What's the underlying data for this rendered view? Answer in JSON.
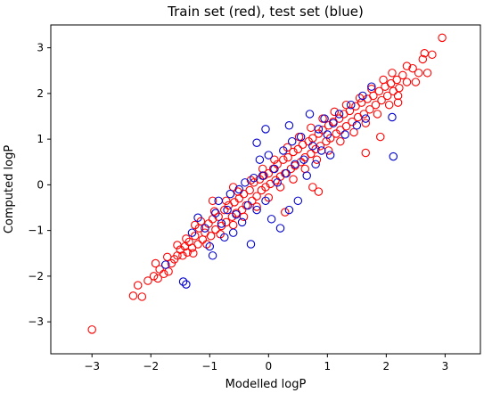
{
  "chart_data": {
    "type": "scatter",
    "title": "Train set (red), test set (blue)",
    "xlabel": "Modelled logP",
    "ylabel": "Computed logP",
    "xlim": [
      -3.7,
      3.6
    ],
    "ylim": [
      -3.7,
      3.5
    ],
    "xticks": [
      -3,
      -2,
      -1,
      0,
      1,
      2,
      3
    ],
    "yticks": [
      -3,
      -2,
      -1,
      0,
      1,
      2,
      3
    ],
    "grid": false,
    "legend": "none",
    "colors": {
      "train": "#ff0000",
      "test": "#0000cc"
    },
    "series": [
      {
        "color": "#ff0000",
        "points": [
          [
            -3.0,
            -3.17
          ],
          [
            -2.3,
            -2.43
          ],
          [
            -2.15,
            -2.45
          ],
          [
            -2.05,
            -2.1
          ],
          [
            -1.95,
            -2.0
          ],
          [
            -1.92,
            -1.72
          ],
          [
            -1.85,
            -1.85
          ],
          [
            -1.78,
            -1.95
          ],
          [
            -1.72,
            -1.58
          ],
          [
            -1.65,
            -1.72
          ],
          [
            -1.6,
            -1.63
          ],
          [
            -1.55,
            -1.55
          ],
          [
            -1.5,
            -1.42
          ],
          [
            -1.46,
            -1.55
          ],
          [
            -1.42,
            -1.35
          ],
          [
            -1.38,
            -1.48
          ],
          [
            -1.35,
            -1.25
          ],
          [
            -1.3,
            -1.38
          ],
          [
            -1.25,
            -1.12
          ],
          [
            -1.2,
            -1.3
          ],
          [
            -1.18,
            -0.95
          ],
          [
            -1.12,
            -1.2
          ],
          [
            -1.08,
            -1.05
          ],
          [
            -1.02,
            -0.85
          ],
          [
            -0.98,
            -1.12
          ],
          [
            -0.95,
            -0.75
          ],
          [
            -0.9,
            -0.98
          ],
          [
            -0.85,
            -0.7
          ],
          [
            -0.8,
            -0.9
          ],
          [
            -0.75,
            -0.55
          ],
          [
            -0.72,
            -0.82
          ],
          [
            -0.68,
            -0.45
          ],
          [
            -0.62,
            -0.7
          ],
          [
            -0.58,
            -0.38
          ],
          [
            -0.55,
            -0.62
          ],
          [
            -0.5,
            -0.3
          ],
          [
            -0.45,
            -0.55
          ],
          [
            -0.42,
            -0.2
          ],
          [
            -0.38,
            -0.45
          ],
          [
            -0.32,
            -0.12
          ],
          [
            -0.28,
            -0.35
          ],
          [
            -0.25,
            0.05
          ],
          [
            -0.2,
            -0.25
          ],
          [
            -0.15,
            0.12
          ],
          [
            -0.12,
            -0.12
          ],
          [
            -0.08,
            0.2
          ],
          [
            -0.05,
            -0.05
          ],
          [
            0.0,
            0.25
          ],
          [
            0.03,
            0.02
          ],
          [
            0.08,
            0.35
          ],
          [
            0.12,
            0.1
          ],
          [
            0.15,
            0.45
          ],
          [
            0.2,
            0.18
          ],
          [
            0.25,
            0.55
          ],
          [
            0.28,
            0.25
          ],
          [
            0.33,
            0.6
          ],
          [
            0.38,
            0.35
          ],
          [
            0.42,
            0.72
          ],
          [
            0.45,
            0.42
          ],
          [
            0.5,
            0.78
          ],
          [
            0.55,
            0.5
          ],
          [
            0.58,
            0.88
          ],
          [
            0.62,
            0.6
          ],
          [
            0.68,
            0.95
          ],
          [
            0.72,
            0.68
          ],
          [
            0.75,
            1.02
          ],
          [
            0.8,
            0.78
          ],
          [
            0.85,
            1.12
          ],
          [
            0.88,
            0.85
          ],
          [
            0.92,
            1.2
          ],
          [
            0.98,
            0.95
          ],
          [
            1.02,
            1.3
          ],
          [
            1.05,
            1.02
          ],
          [
            1.1,
            1.38
          ],
          [
            1.15,
            1.12
          ],
          [
            1.2,
            1.45
          ],
          [
            1.22,
            1.2
          ],
          [
            1.28,
            1.55
          ],
          [
            1.32,
            1.28
          ],
          [
            1.38,
            1.62
          ],
          [
            1.42,
            1.38
          ],
          [
            1.48,
            1.72
          ],
          [
            1.52,
            1.48
          ],
          [
            1.58,
            1.8
          ],
          [
            1.62,
            1.55
          ],
          [
            1.68,
            1.88
          ],
          [
            1.72,
            1.65
          ],
          [
            1.78,
            1.95
          ],
          [
            1.82,
            1.75
          ],
          [
            1.88,
            2.05
          ],
          [
            1.92,
            1.85
          ],
          [
            1.98,
            2.15
          ],
          [
            2.02,
            1.95
          ],
          [
            2.08,
            2.22
          ],
          [
            2.12,
            2.05
          ],
          [
            2.18,
            2.3
          ],
          [
            2.22,
            2.12
          ],
          [
            2.28,
            2.4
          ],
          [
            2.35,
            2.25
          ],
          [
            2.45,
            2.55
          ],
          [
            2.55,
            2.45
          ],
          [
            2.62,
            2.75
          ],
          [
            2.7,
            2.45
          ],
          [
            2.78,
            2.85
          ],
          [
            2.95,
            3.22
          ],
          [
            -2.22,
            -2.2
          ],
          [
            -1.88,
            -2.05
          ],
          [
            -1.7,
            -1.9
          ],
          [
            -1.55,
            -1.32
          ],
          [
            -1.4,
            -1.18
          ],
          [
            -1.28,
            -1.5
          ],
          [
            -1.15,
            -0.8
          ],
          [
            -1.05,
            -1.3
          ],
          [
            -0.92,
            -0.58
          ],
          [
            -0.82,
            -1.08
          ],
          [
            -0.72,
            -0.35
          ],
          [
            -0.6,
            -0.88
          ],
          [
            -0.52,
            -0.15
          ],
          [
            -0.42,
            -0.7
          ],
          [
            -0.3,
            0.1
          ],
          [
            -0.2,
            -0.48
          ],
          [
            -0.1,
            0.35
          ],
          [
            0.0,
            -0.28
          ],
          [
            0.1,
            0.55
          ],
          [
            0.2,
            -0.05
          ],
          [
            0.32,
            0.82
          ],
          [
            0.42,
            0.12
          ],
          [
            0.52,
            1.05
          ],
          [
            0.62,
            0.35
          ],
          [
            0.72,
            1.25
          ],
          [
            0.82,
            0.55
          ],
          [
            0.92,
            1.45
          ],
          [
            1.02,
            0.75
          ],
          [
            1.12,
            1.6
          ],
          [
            1.22,
            0.95
          ],
          [
            1.32,
            1.75
          ],
          [
            1.45,
            1.15
          ],
          [
            1.55,
            1.9
          ],
          [
            1.65,
            1.35
          ],
          [
            1.75,
            2.1
          ],
          [
            1.85,
            1.55
          ],
          [
            1.95,
            2.3
          ],
          [
            2.05,
            1.75
          ],
          [
            2.1,
            2.45
          ],
          [
            2.2,
            1.95
          ],
          [
            2.35,
            2.6
          ],
          [
            2.5,
            2.25
          ],
          [
            2.65,
            2.88
          ],
          [
            0.75,
            -0.05
          ],
          [
            0.85,
            -0.15
          ],
          [
            0.28,
            -0.6
          ],
          [
            -0.6,
            -0.05
          ],
          [
            -0.95,
            -0.35
          ],
          [
            -1.25,
            -0.88
          ],
          [
            1.65,
            0.7
          ],
          [
            1.9,
            1.05
          ],
          [
            2.2,
            1.8
          ]
        ]
      },
      {
        "color": "#0000cc",
        "points": [
          [
            -1.75,
            -1.75
          ],
          [
            -1.45,
            -2.12
          ],
          [
            -1.4,
            -2.18
          ],
          [
            -1.3,
            -1.05
          ],
          [
            -1.2,
            -0.72
          ],
          [
            -1.0,
            -1.35
          ],
          [
            -0.95,
            -1.55
          ],
          [
            -0.9,
            -0.62
          ],
          [
            -0.85,
            -0.35
          ],
          [
            -0.8,
            -0.85
          ],
          [
            -0.75,
            -1.15
          ],
          [
            -0.7,
            -0.55
          ],
          [
            -0.65,
            -0.2
          ],
          [
            -0.6,
            -1.05
          ],
          [
            -0.55,
            -0.65
          ],
          [
            -0.5,
            -0.1
          ],
          [
            -0.45,
            -0.82
          ],
          [
            -0.4,
            0.05
          ],
          [
            -0.35,
            -0.45
          ],
          [
            -0.3,
            -1.3
          ],
          [
            -0.25,
            0.15
          ],
          [
            -0.2,
            -0.55
          ],
          [
            -0.15,
            0.55
          ],
          [
            -0.1,
            0.2
          ],
          [
            -0.05,
            -0.35
          ],
          [
            0.0,
            0.65
          ],
          [
            0.05,
            -0.75
          ],
          [
            0.1,
            0.35
          ],
          [
            0.15,
            0.05
          ],
          [
            0.2,
            -0.95
          ],
          [
            0.25,
            0.75
          ],
          [
            0.3,
            0.25
          ],
          [
            0.35,
            -0.55
          ],
          [
            0.4,
            0.95
          ],
          [
            0.45,
            0.45
          ],
          [
            0.5,
            -0.35
          ],
          [
            0.55,
            1.05
          ],
          [
            0.6,
            0.55
          ],
          [
            0.65,
            0.2
          ],
          [
            0.7,
            1.55
          ],
          [
            0.75,
            0.85
          ],
          [
            0.8,
            0.45
          ],
          [
            0.85,
            1.22
          ],
          [
            0.9,
            0.75
          ],
          [
            0.95,
            1.45
          ],
          [
            1.0,
            1.1
          ],
          [
            1.05,
            0.65
          ],
          [
            1.1,
            1.35
          ],
          [
            1.2,
            1.55
          ],
          [
            1.3,
            1.1
          ],
          [
            1.4,
            1.75
          ],
          [
            1.5,
            1.3
          ],
          [
            1.6,
            1.95
          ],
          [
            1.65,
            1.45
          ],
          [
            1.75,
            2.15
          ],
          [
            2.1,
            1.48
          ],
          [
            2.12,
            0.62
          ],
          [
            -0.05,
            1.22
          ],
          [
            -0.2,
            0.92
          ],
          [
            0.35,
            1.3
          ],
          [
            -1.08,
            -0.95
          ]
        ]
      }
    ]
  }
}
